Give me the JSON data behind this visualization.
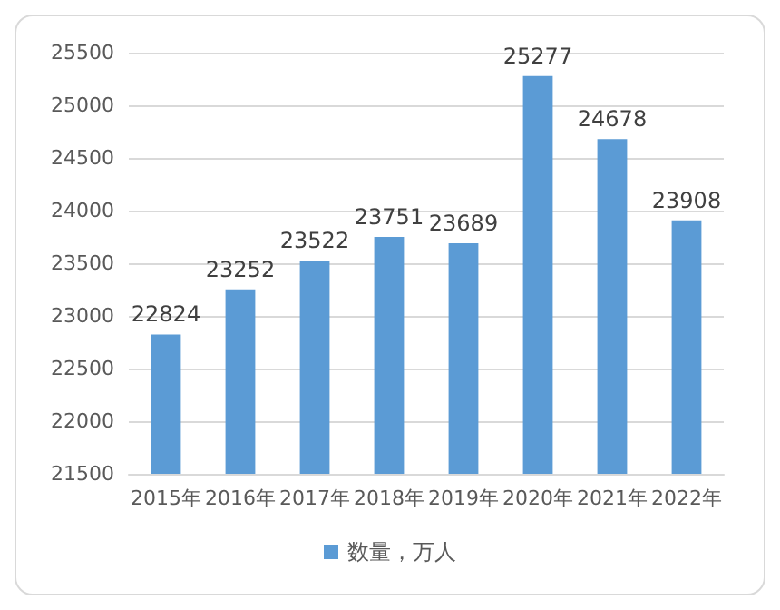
{
  "chart_data": {
    "type": "bar",
    "categories": [
      "2015年",
      "2016年",
      "2017年",
      "2018年",
      "2019年",
      "2020年",
      "2021年",
      "2022年"
    ],
    "series": [
      {
        "name": "数量，万人",
        "color": "#5b9bd5",
        "values": [
          22824,
          23252,
          23522,
          23751,
          23689,
          25277,
          24678,
          23908
        ]
      }
    ],
    "ylim": [
      21500,
      25500
    ],
    "yticks": [
      21500,
      22000,
      22500,
      23000,
      23500,
      24000,
      24500,
      25000,
      25500
    ],
    "grid": "y",
    "legend": "bottom",
    "data_labels": true
  }
}
